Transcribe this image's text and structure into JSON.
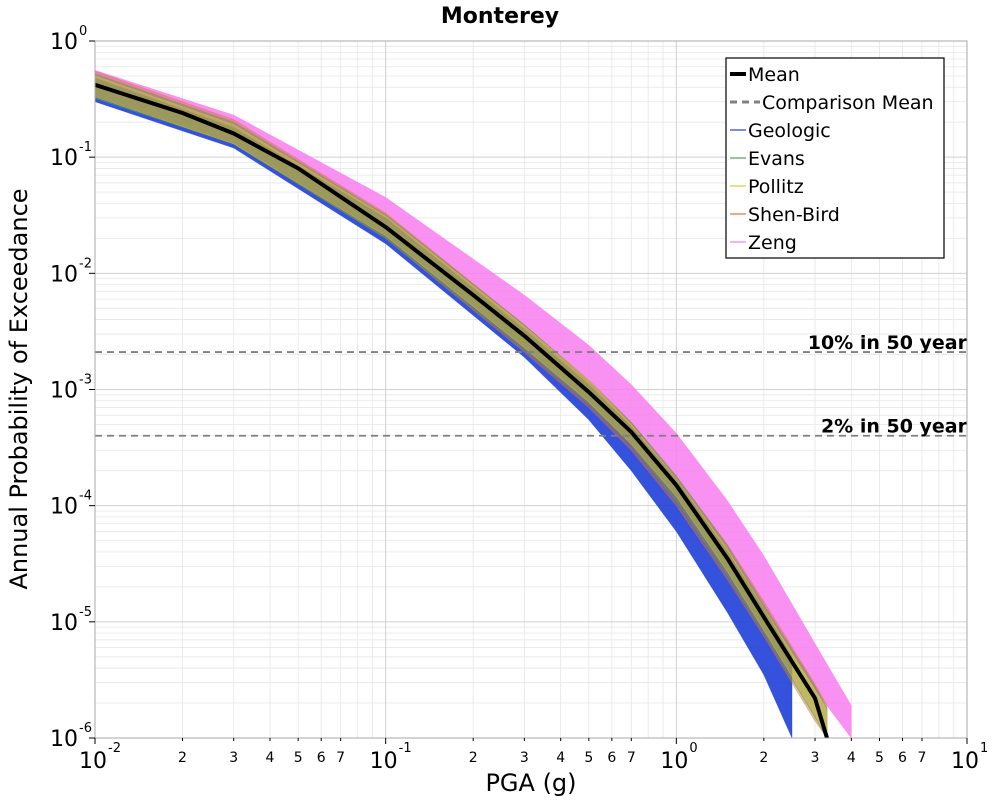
{
  "chart_data": {
    "type": "line",
    "title": "Monterey",
    "xlabel": "PGA (g)",
    "ylabel": "Annual Probability of Exceedance",
    "xscale": "log",
    "yscale": "log",
    "xlim": [
      0.01,
      10
    ],
    "ylim": [
      1e-06,
      1
    ],
    "grid": true,
    "legend_position": "top-right",
    "x_major_ticks": [
      {
        "base": "10",
        "exp": "-2"
      },
      {
        "base": "10",
        "exp": "-1"
      },
      {
        "base": "10",
        "exp": "0"
      },
      {
        "base": "10",
        "exp": "1"
      }
    ],
    "x_minor_tick_labels": [
      "2",
      "3",
      "4",
      "5",
      "6",
      "7"
    ],
    "y_major_ticks": [
      {
        "base": "10",
        "exp": "-6"
      },
      {
        "base": "10",
        "exp": "-5"
      },
      {
        "base": "10",
        "exp": "-4"
      },
      {
        "base": "10",
        "exp": "-3"
      },
      {
        "base": "10",
        "exp": "-2"
      },
      {
        "base": "10",
        "exp": "-1"
      },
      {
        "base": "10",
        "exp": "0"
      }
    ],
    "reference_lines": [
      {
        "label": "10% in 50 year",
        "y": 0.0021,
        "color": "#7f7f7f",
        "style": "dashed"
      },
      {
        "label": "2% in 50 year",
        "y": 0.0004,
        "color": "#7f7f7f",
        "style": "dashed"
      }
    ],
    "series": [
      {
        "name": "Mean",
        "color": "#000000",
        "style": "solid",
        "x": [
          0.01,
          0.02,
          0.03,
          0.05,
          0.1,
          0.2,
          0.3,
          0.5,
          0.7,
          1.0,
          1.5,
          2.0,
          3.0,
          3.3
        ],
        "y": [
          0.42,
          0.24,
          0.16,
          0.08,
          0.025,
          0.0065,
          0.0029,
          0.00095,
          0.00043,
          0.00015,
          3.5e-05,
          1.1e-05,
          2.2e-06,
          1e-06
        ]
      },
      {
        "name": "Comparison Mean",
        "color": "#808080",
        "style": "dashed",
        "x": [],
        "y": []
      },
      {
        "name": "Geologic",
        "color": "#1f3fd8",
        "style": "band",
        "x": [
          0.01,
          0.03,
          0.1,
          0.3,
          0.5,
          0.7,
          1.0,
          1.5,
          2.0,
          2.5
        ],
        "y_low": [
          0.3,
          0.12,
          0.018,
          0.0019,
          0.00055,
          0.0002,
          6e-05,
          1.2e-05,
          3.5e-06,
          1e-06
        ],
        "y_high": [
          0.48,
          0.18,
          0.03,
          0.0033,
          0.0011,
          0.00048,
          0.00017,
          4e-05,
          1.3e-05,
          5e-06
        ]
      },
      {
        "name": "Evans",
        "color": "#4ea24e",
        "style": "band",
        "x": [
          0.01,
          0.03,
          0.1,
          0.3,
          0.5,
          0.7,
          1.0,
          1.5,
          2.0,
          3.0,
          3.3
        ],
        "y_low": [
          0.32,
          0.13,
          0.02,
          0.0022,
          0.00075,
          0.00033,
          0.00011,
          2.5e-05,
          8e-06,
          1.5e-06,
          1e-06
        ],
        "y_high": [
          0.52,
          0.2,
          0.032,
          0.0036,
          0.0012,
          0.00052,
          0.00018,
          4.5e-05,
          1.4e-05,
          2.8e-06,
          1.8e-06
        ]
      },
      {
        "name": "Pollitz",
        "color": "#e8c23a",
        "style": "band",
        "x": [
          0.01,
          0.03,
          0.1,
          0.3,
          0.5,
          0.7,
          1.0,
          1.5,
          2.0,
          3.0,
          3.3
        ],
        "y_low": [
          0.33,
          0.13,
          0.021,
          0.0023,
          0.00078,
          0.00034,
          0.00012,
          2.7e-05,
          8.5e-06,
          1.6e-06,
          1e-06
        ],
        "y_high": [
          0.5,
          0.19,
          0.031,
          0.0035,
          0.0012,
          0.0005,
          0.00017,
          4.2e-05,
          1.3e-05,
          2.6e-06,
          1.7e-06
        ]
      },
      {
        "name": "Shen-Bird",
        "color": "#e0703a",
        "style": "band",
        "x": [
          0.01,
          0.03,
          0.1,
          0.3,
          0.5,
          0.7,
          1.0,
          1.5,
          2.0,
          3.0,
          3.3
        ],
        "y_low": [
          0.34,
          0.13,
          0.02,
          0.0021,
          0.0007,
          0.0003,
          0.0001,
          2.3e-05,
          7.5e-06,
          1.4e-06,
          1e-06
        ],
        "y_high": [
          0.55,
          0.21,
          0.033,
          0.0036,
          0.0012,
          0.00052,
          0.00018,
          4.6e-05,
          1.5e-05,
          2.9e-06,
          1.9e-06
        ]
      },
      {
        "name": "Zeng",
        "color": "#f77ef0",
        "style": "band",
        "x": [
          0.01,
          0.03,
          0.1,
          0.3,
          0.5,
          0.7,
          1.0,
          1.5,
          2.0,
          3.0,
          4.0
        ],
        "y_low": [
          0.36,
          0.15,
          0.025,
          0.003,
          0.001,
          0.00045,
          0.00016,
          4e-05,
          1.3e-05,
          2.6e-06,
          1e-06
        ],
        "y_high": [
          0.56,
          0.23,
          0.045,
          0.0065,
          0.0024,
          0.0011,
          0.00042,
          0.00011,
          3.7e-05,
          6.5e-06,
          1.9e-06
        ]
      }
    ]
  }
}
